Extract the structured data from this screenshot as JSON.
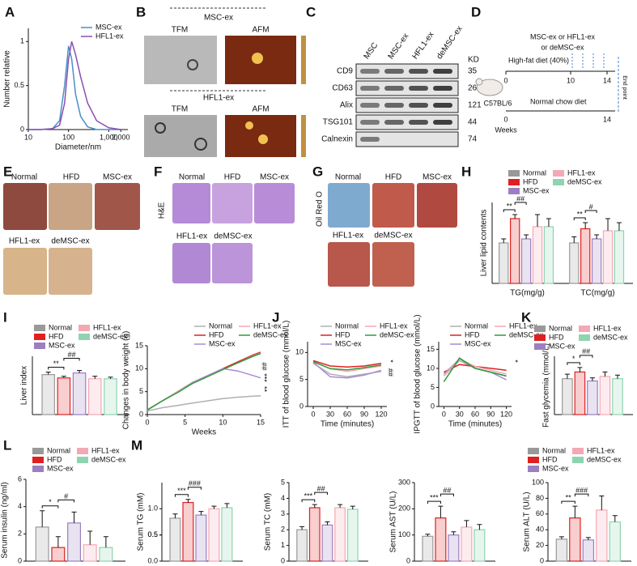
{
  "panels": [
    "A",
    "B",
    "C",
    "D",
    "E",
    "F",
    "G",
    "H",
    "I",
    "J",
    "K",
    "L",
    "M"
  ],
  "tem_afm": {
    "groups": [
      {
        "title": "MSC-ex",
        "methods": [
          "TFM",
          "AFM"
        ]
      },
      {
        "title": "HFL1-ex",
        "methods": [
          "TFM",
          "AFM"
        ]
      }
    ]
  },
  "blot": {
    "lanes": [
      "MSC",
      "MSC-ex",
      "HFL1-ex",
      "deMSC-ex"
    ],
    "unit": "KD",
    "rows": [
      {
        "protein": "CD9",
        "kd": "35"
      },
      {
        "protein": "CD63",
        "kd": "26"
      },
      {
        "protein": "Alix",
        "kd": "121"
      },
      {
        "protein": "TSG101",
        "kd": "44"
      },
      {
        "protein": "Calnexin",
        "kd": "74"
      }
    ]
  },
  "design": {
    "treatment": [
      "MSC-ex or HFL1-ex",
      "or deMSC-ex"
    ],
    "hfd": "High-fat diet (40%)",
    "chow": "Normal chow diet",
    "strain": "C57BL/6",
    "axis_label": "Weeks",
    "hfd_ticks": [
      "0",
      "10",
      "14"
    ],
    "chow_ticks": [
      "0",
      "14"
    ],
    "end": "End point"
  },
  "liver_photos": {
    "labels": [
      "Normal",
      "HFD",
      "MSC-ex",
      "HFL1-ex",
      "deMSC-ex"
    ]
  },
  "he": {
    "stain": "H&E",
    "labels": [
      "Normal",
      "HFD",
      "MSC-ex",
      "HFL1-ex",
      "deMSC-ex"
    ]
  },
  "oil_red": {
    "stain": "Oil Red O",
    "labels": [
      "Normal",
      "HFD",
      "MSC-ex",
      "HFL1-ex",
      "deMSC-ex"
    ]
  },
  "chart_data": [
    {
      "type": "line",
      "x_label": "Diameter/nm",
      "y_label": "Number relative",
      "log_x": true,
      "legend": "top-right",
      "x": [
        10,
        20,
        40,
        60,
        80,
        100,
        120,
        150,
        200,
        300,
        500,
        1000,
        2000
      ],
      "series": [
        {
          "name": "MSC-ex",
          "color": "#4a8fc8",
          "values": [
            0,
            0,
            0.01,
            0.1,
            0.5,
            0.95,
            0.8,
            0.4,
            0.15,
            0.03,
            0,
            0,
            0
          ]
        },
        {
          "name": "HFL1-ex",
          "color": "#8a4fb0",
          "values": [
            0,
            0,
            0.01,
            0.05,
            0.3,
            0.8,
            1.0,
            0.85,
            0.6,
            0.3,
            0.1,
            0.02,
            0
          ]
        }
      ],
      "xlim": [
        10,
        3000
      ],
      "xticks": [
        10,
        100,
        {
          "value": 1000,
          "label": "1,000"
        },
        {
          "value": 2000,
          "label": "2,000"
        }
      ],
      "ylim": [
        0,
        1.15
      ],
      "yticks": [
        0,
        0.5,
        1
      ]
    },
    {
      "type": "bar",
      "y_label": "Liver lipid contents",
      "legend": "top",
      "categories": [
        "TG(mg/g)",
        "TC(mg/g)"
      ],
      "series": [
        {
          "name": "Normal",
          "color": "#999999",
          "values": [
            10,
            10
          ],
          "errors": [
            1,
            1.5
          ]
        },
        {
          "name": "HFD",
          "color": "#e02020",
          "values": [
            16,
            13.5
          ],
          "errors": [
            1,
            1.5
          ]
        },
        {
          "name": "MSC-ex",
          "color": "#9b7fc0",
          "values": [
            11,
            11
          ],
          "errors": [
            1,
            1
          ]
        },
        {
          "name": "HFL1-ex",
          "color": "#f4a8b4",
          "values": [
            14,
            13
          ],
          "errors": [
            3,
            3
          ]
        },
        {
          "name": "deMSC-ex",
          "color": "#8fd4b0",
          "values": [
            14,
            13
          ],
          "errors": [
            2,
            2
          ]
        }
      ],
      "ylim": [
        0,
        20
      ],
      "annotations": [
        "**",
        "##",
        "**",
        "#"
      ]
    },
    {
      "type": "bar",
      "y_label": "Liver index",
      "legend": "top",
      "categories": [
        null
      ],
      "series": [
        {
          "name": "Normal",
          "color": "#999999",
          "values": [
            0.048
          ],
          "errors": [
            0.003
          ]
        },
        {
          "name": "HFD",
          "color": "#e02020",
          "values": [
            0.044
          ],
          "errors": [
            0.002
          ]
        },
        {
          "name": "MSC-ex",
          "color": "#9b7fc0",
          "values": [
            0.05
          ],
          "errors": [
            0.003
          ]
        },
        {
          "name": "HFL1-ex",
          "color": "#f4a8b4",
          "values": [
            0.043
          ],
          "errors": [
            0.003
          ]
        },
        {
          "name": "deMSC-ex",
          "color": "#8fd4b0",
          "values": [
            0.043
          ],
          "errors": [
            0.002
          ]
        }
      ],
      "ylim": [
        0,
        0.07
      ],
      "annotations": [
        "**",
        "##"
      ]
    },
    {
      "type": "line",
      "x_label": "Weeks",
      "y_label": "Changes in body weight (g)",
      "legend": "top",
      "x": [
        0,
        2,
        4,
        6,
        8,
        10,
        12,
        14,
        15
      ],
      "series": [
        {
          "name": "Normal",
          "color": "#b0b0b0",
          "values": [
            0.8,
            1.5,
            2,
            2.5,
            3,
            3.5,
            3.8,
            4,
            4.1
          ]
        },
        {
          "name": "HFD",
          "color": "#e02020",
          "values": [
            1,
            3,
            5,
            7,
            8.5,
            10,
            11.5,
            13,
            13.6
          ]
        },
        {
          "name": "MSC-ex",
          "color": "#a98bd4",
          "values": [
            1,
            3,
            5,
            7,
            8.5,
            10,
            9.5,
            8.5,
            8
          ]
        },
        {
          "name": "HFL1-ex",
          "color": "#f4a8b4",
          "values": [
            1,
            3,
            5,
            6.8,
            8.3,
            9.8,
            11.3,
            12.8,
            13.4
          ]
        },
        {
          "name": "deMSC-ex",
          "color": "#2e9a3a",
          "values": [
            1,
            3,
            4.8,
            6.8,
            8.3,
            9.8,
            11.3,
            12.7,
            13.3
          ]
        }
      ],
      "xlim": [
        0,
        15
      ],
      "xticks": [
        0,
        5,
        10,
        15
      ],
      "ylim": [
        0,
        15
      ],
      "yticks": [
        0,
        5,
        10,
        15
      ],
      "annotations": [
        "##",
        "***",
        "**"
      ]
    },
    {
      "type": "line",
      "x_label": "Time (minutes)",
      "y_label": "ITT of blood glucose (mmol/L)",
      "legend": "top",
      "x": [
        0,
        30,
        60,
        90,
        120
      ],
      "series": [
        {
          "name": "Normal",
          "color": "#b0b0b0",
          "values": [
            8,
            6,
            5.5,
            6,
            6.5
          ]
        },
        {
          "name": "HFD",
          "color": "#e02020",
          "values": [
            8.5,
            7.5,
            7.3,
            7.5,
            8
          ]
        },
        {
          "name": "MSC-ex",
          "color": "#a98bd4",
          "values": [
            8.2,
            5.5,
            5.3,
            5.8,
            6.7
          ]
        },
        {
          "name": "HFL1-ex",
          "color": "#f4a8b4",
          "values": [
            8.3,
            7,
            6.5,
            7,
            7.5
          ]
        },
        {
          "name": "deMSC-ex",
          "color": "#2e9a3a",
          "values": [
            8.3,
            7,
            6.8,
            7.2,
            7.7
          ]
        }
      ],
      "xlim": [
        -10,
        130
      ],
      "xticks": [
        0,
        30,
        60,
        90,
        120
      ],
      "ylim": [
        0,
        12
      ],
      "yticks": [
        0,
        5,
        10
      ],
      "annotations": [
        "*",
        "##"
      ]
    },
    {
      "type": "line",
      "x_label": "Time (minutes)",
      "y_label": "IPGTT of blood glucose (mmol/L)",
      "legend": "top",
      "x": [
        0,
        30,
        60,
        90,
        120
      ],
      "series": [
        {
          "name": "Normal",
          "color": "#b0b0b0",
          "values": [
            8,
            12,
            10,
            9,
            8
          ]
        },
        {
          "name": "HFD",
          "color": "#e02020",
          "values": [
            9,
            11,
            10.5,
            10,
            9.5
          ]
        },
        {
          "name": "MSC-ex",
          "color": "#a98bd4",
          "values": [
            8.5,
            12.5,
            10,
            9,
            7
          ]
        },
        {
          "name": "HFL1-ex",
          "color": "#f4a8b4",
          "values": [
            8,
            12.5,
            10.5,
            9.5,
            8.5
          ]
        },
        {
          "name": "deMSC-ex",
          "color": "#2e9a3a",
          "values": [
            6.5,
            12.7,
            10,
            9,
            8
          ]
        }
      ],
      "xlim": [
        -10,
        130
      ],
      "xticks": [
        0,
        30,
        60,
        90,
        120
      ],
      "ylim": [
        0,
        17
      ],
      "yticks": [
        0,
        5,
        10,
        15
      ],
      "annotations": [
        "*"
      ]
    },
    {
      "type": "bar",
      "y_label": "Fast glycemia (mmol/L)",
      "legend": "top",
      "categories": [
        null
      ],
      "series": [
        {
          "name": "Normal",
          "color": "#999999",
          "values": [
            8
          ],
          "errors": [
            1
          ]
        },
        {
          "name": "HFD",
          "color": "#e02020",
          "values": [
            9.5
          ],
          "errors": [
            1
          ]
        },
        {
          "name": "MSC-ex",
          "color": "#9b7fc0",
          "values": [
            7.5
          ],
          "errors": [
            0.7
          ]
        },
        {
          "name": "HFL1-ex",
          "color": "#f4a8b4",
          "values": [
            8.5
          ],
          "errors": [
            1
          ]
        },
        {
          "name": "deMSC-ex",
          "color": "#8fd4b0",
          "values": [
            8
          ],
          "errors": [
            0.8
          ]
        }
      ],
      "ylim": [
        0,
        13
      ],
      "annotations": [
        "*",
        "##"
      ]
    },
    {
      "type": "bar",
      "y_label": "Serum insulin (ng/ml)",
      "legend": "top",
      "categories": [
        null
      ],
      "series": [
        {
          "name": "Normal",
          "color": "#999999",
          "values": [
            2.5
          ],
          "errors": [
            1.2
          ]
        },
        {
          "name": "HFD",
          "color": "#e02020",
          "values": [
            1
          ],
          "errors": [
            0.8
          ]
        },
        {
          "name": "MSC-ex",
          "color": "#9b7fc0",
          "values": [
            2.8
          ],
          "errors": [
            0.8
          ]
        },
        {
          "name": "HFL1-ex",
          "color": "#f4a8b4",
          "values": [
            1.2
          ],
          "errors": [
            1
          ]
        },
        {
          "name": "deMSC-ex",
          "color": "#8fd4b0",
          "values": [
            1
          ],
          "errors": [
            0.8
          ]
        }
      ],
      "ylim": [
        0,
        6
      ],
      "yticks": [
        0,
        2,
        4,
        6
      ],
      "annotations": [
        "*",
        "#"
      ]
    },
    {
      "type": "bar",
      "y_label": "Serum TG (mM)",
      "categories": [
        null
      ],
      "series": [
        {
          "color": "#999999",
          "values": [
            0.82
          ],
          "errors": [
            0.08
          ]
        },
        {
          "color": "#e02020",
          "values": [
            1.12
          ],
          "errors": [
            0.06
          ]
        },
        {
          "color": "#9b7fc0",
          "values": [
            0.88
          ],
          "errors": [
            0.07
          ]
        },
        {
          "color": "#f4a8b4",
          "values": [
            1.0
          ],
          "errors": [
            0.05
          ]
        },
        {
          "color": "#8fd4b0",
          "values": [
            1.02
          ],
          "errors": [
            0.08
          ]
        }
      ],
      "ylim": [
        0,
        1.5
      ],
      "yticks": [
        {
          "value": 0,
          "label": "0.0"
        },
        0.5,
        {
          "value": 1,
          "label": "1.0"
        },
        0.5
      ],
      "annotations": [
        "***",
        "###"
      ]
    },
    {
      "type": "bar",
      "y_label": "Serum TC (mM)",
      "categories": [
        null
      ],
      "series": [
        {
          "color": "#999999",
          "values": [
            2
          ],
          "errors": [
            0.2
          ]
        },
        {
          "color": "#e02020",
          "values": [
            3.4
          ],
          "errors": [
            0.2
          ]
        },
        {
          "color": "#9b7fc0",
          "values": [
            2.3
          ],
          "errors": [
            0.2
          ]
        },
        {
          "color": "#f4a8b4",
          "values": [
            3.4
          ],
          "errors": [
            0.2
          ]
        },
        {
          "color": "#8fd4b0",
          "values": [
            3.3
          ],
          "errors": [
            0.2
          ]
        }
      ],
      "ylim": [
        0,
        5
      ],
      "yticks": [
        0,
        1,
        2,
        3,
        4,
        5
      ],
      "annotations": [
        "***",
        "##"
      ]
    },
    {
      "type": "bar",
      "y_label": "Serum AST (U/L)",
      "categories": [
        null
      ],
      "series": [
        {
          "color": "#999999",
          "values": [
            95
          ],
          "errors": [
            8
          ]
        },
        {
          "color": "#e02020",
          "values": [
            165
          ],
          "errors": [
            45
          ]
        },
        {
          "color": "#9b7fc0",
          "values": [
            100
          ],
          "errors": [
            12
          ]
        },
        {
          "color": "#f4a8b4",
          "values": [
            130
          ],
          "errors": [
            25
          ]
        },
        {
          "color": "#8fd4b0",
          "values": [
            120
          ],
          "errors": [
            20
          ]
        }
      ],
      "ylim": [
        0,
        300
      ],
      "yticks": [
        0,
        100,
        200,
        300
      ],
      "annotations": [
        "***",
        "##"
      ]
    },
    {
      "type": "bar",
      "y_label": "Serum ALT (U/L)",
      "legend": "top",
      "categories": [
        null
      ],
      "series": [
        {
          "name": "Normal",
          "color": "#999999",
          "values": [
            28
          ],
          "errors": [
            3
          ]
        },
        {
          "name": "HFD",
          "color": "#e02020",
          "values": [
            55
          ],
          "errors": [
            15
          ]
        },
        {
          "name": "MSC-ex",
          "color": "#9b7fc0",
          "values": [
            27
          ],
          "errors": [
            3
          ]
        },
        {
          "name": "HFL1-ex",
          "color": "#f4a8b4",
          "values": [
            65
          ],
          "errors": [
            18
          ]
        },
        {
          "name": "deMSC-ex",
          "color": "#8fd4b0",
          "values": [
            50
          ],
          "errors": [
            8
          ]
        }
      ],
      "ylim": [
        0,
        100
      ],
      "yticks": [
        0,
        20,
        40,
        60,
        80,
        100
      ],
      "annotations": [
        "**",
        "###"
      ]
    }
  ]
}
